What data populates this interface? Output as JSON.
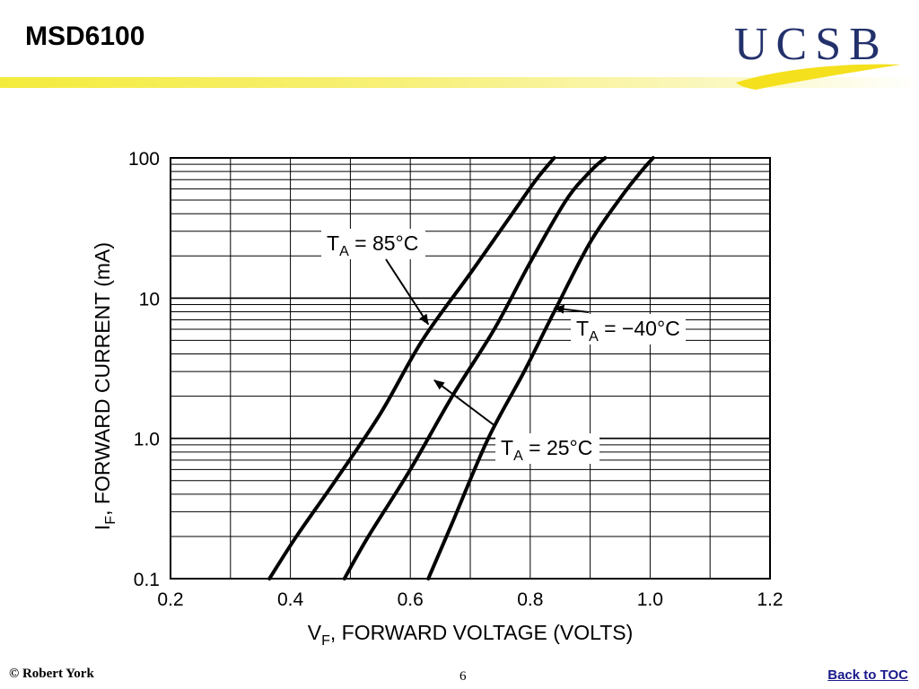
{
  "slide": {
    "title": "MSD6100",
    "footer_author": "© Robert York",
    "page_number": "6",
    "back_link": "Back to TOC",
    "accent_color": "#f4ec3c"
  },
  "logo": {
    "text": "UCSB",
    "color": "#23316b",
    "swoosh_color": "#f4e01c"
  },
  "chart_data": {
    "type": "line",
    "title": "",
    "xlabel": "V",
    "xlabel_sub": "F",
    "xlabel_rest": ", FORWARD VOLTAGE (VOLTS)",
    "ylabel": "I",
    "ylabel_sub": "F",
    "ylabel_rest": ", FORWARD CURRENT (mA)",
    "x_scale": "linear",
    "y_scale": "log",
    "xlim": [
      0.2,
      1.2
    ],
    "ylim": [
      0.1,
      100
    ],
    "x_ticks": [
      "0.2",
      "0.4",
      "0.6",
      "0.8",
      "1.0",
      "1.2"
    ],
    "y_ticks": [
      "0.1",
      "1.0",
      "10",
      "100"
    ],
    "grid": true,
    "series": [
      {
        "name_main": "T",
        "name_sub": "A",
        "name_rest": " = 85°C",
        "x": [
          0.365,
          0.41,
          0.475,
          0.55,
          0.62,
          0.7,
          0.77,
          0.81,
          0.84
        ],
        "y": [
          0.1,
          0.2,
          0.5,
          1.5,
          5,
          15,
          40,
          70,
          100
        ]
      },
      {
        "name_main": "T",
        "name_sub": "A",
        "name_rest": " = 25°C",
        "x": [
          0.49,
          0.53,
          0.6,
          0.67,
          0.74,
          0.8,
          0.86,
          0.9,
          0.925
        ],
        "y": [
          0.1,
          0.2,
          0.6,
          2,
          6,
          18,
          50,
          80,
          100
        ]
      },
      {
        "name_main": "T",
        "name_sub": "A",
        "name_rest": " = −40°C",
        "x": [
          0.63,
          0.67,
          0.73,
          0.79,
          0.84,
          0.9,
          0.955,
          0.985,
          1.005
        ],
        "y": [
          0.1,
          0.25,
          1,
          3,
          8,
          25,
          55,
          80,
          100
        ]
      }
    ],
    "annotations": [
      {
        "series": 0,
        "arrow_target": [
          0.63,
          6.5
        ]
      },
      {
        "series": 1,
        "arrow_target": [
          0.64,
          2.6
        ]
      },
      {
        "series": 2,
        "arrow_target": [
          0.84,
          8.5
        ]
      }
    ]
  }
}
